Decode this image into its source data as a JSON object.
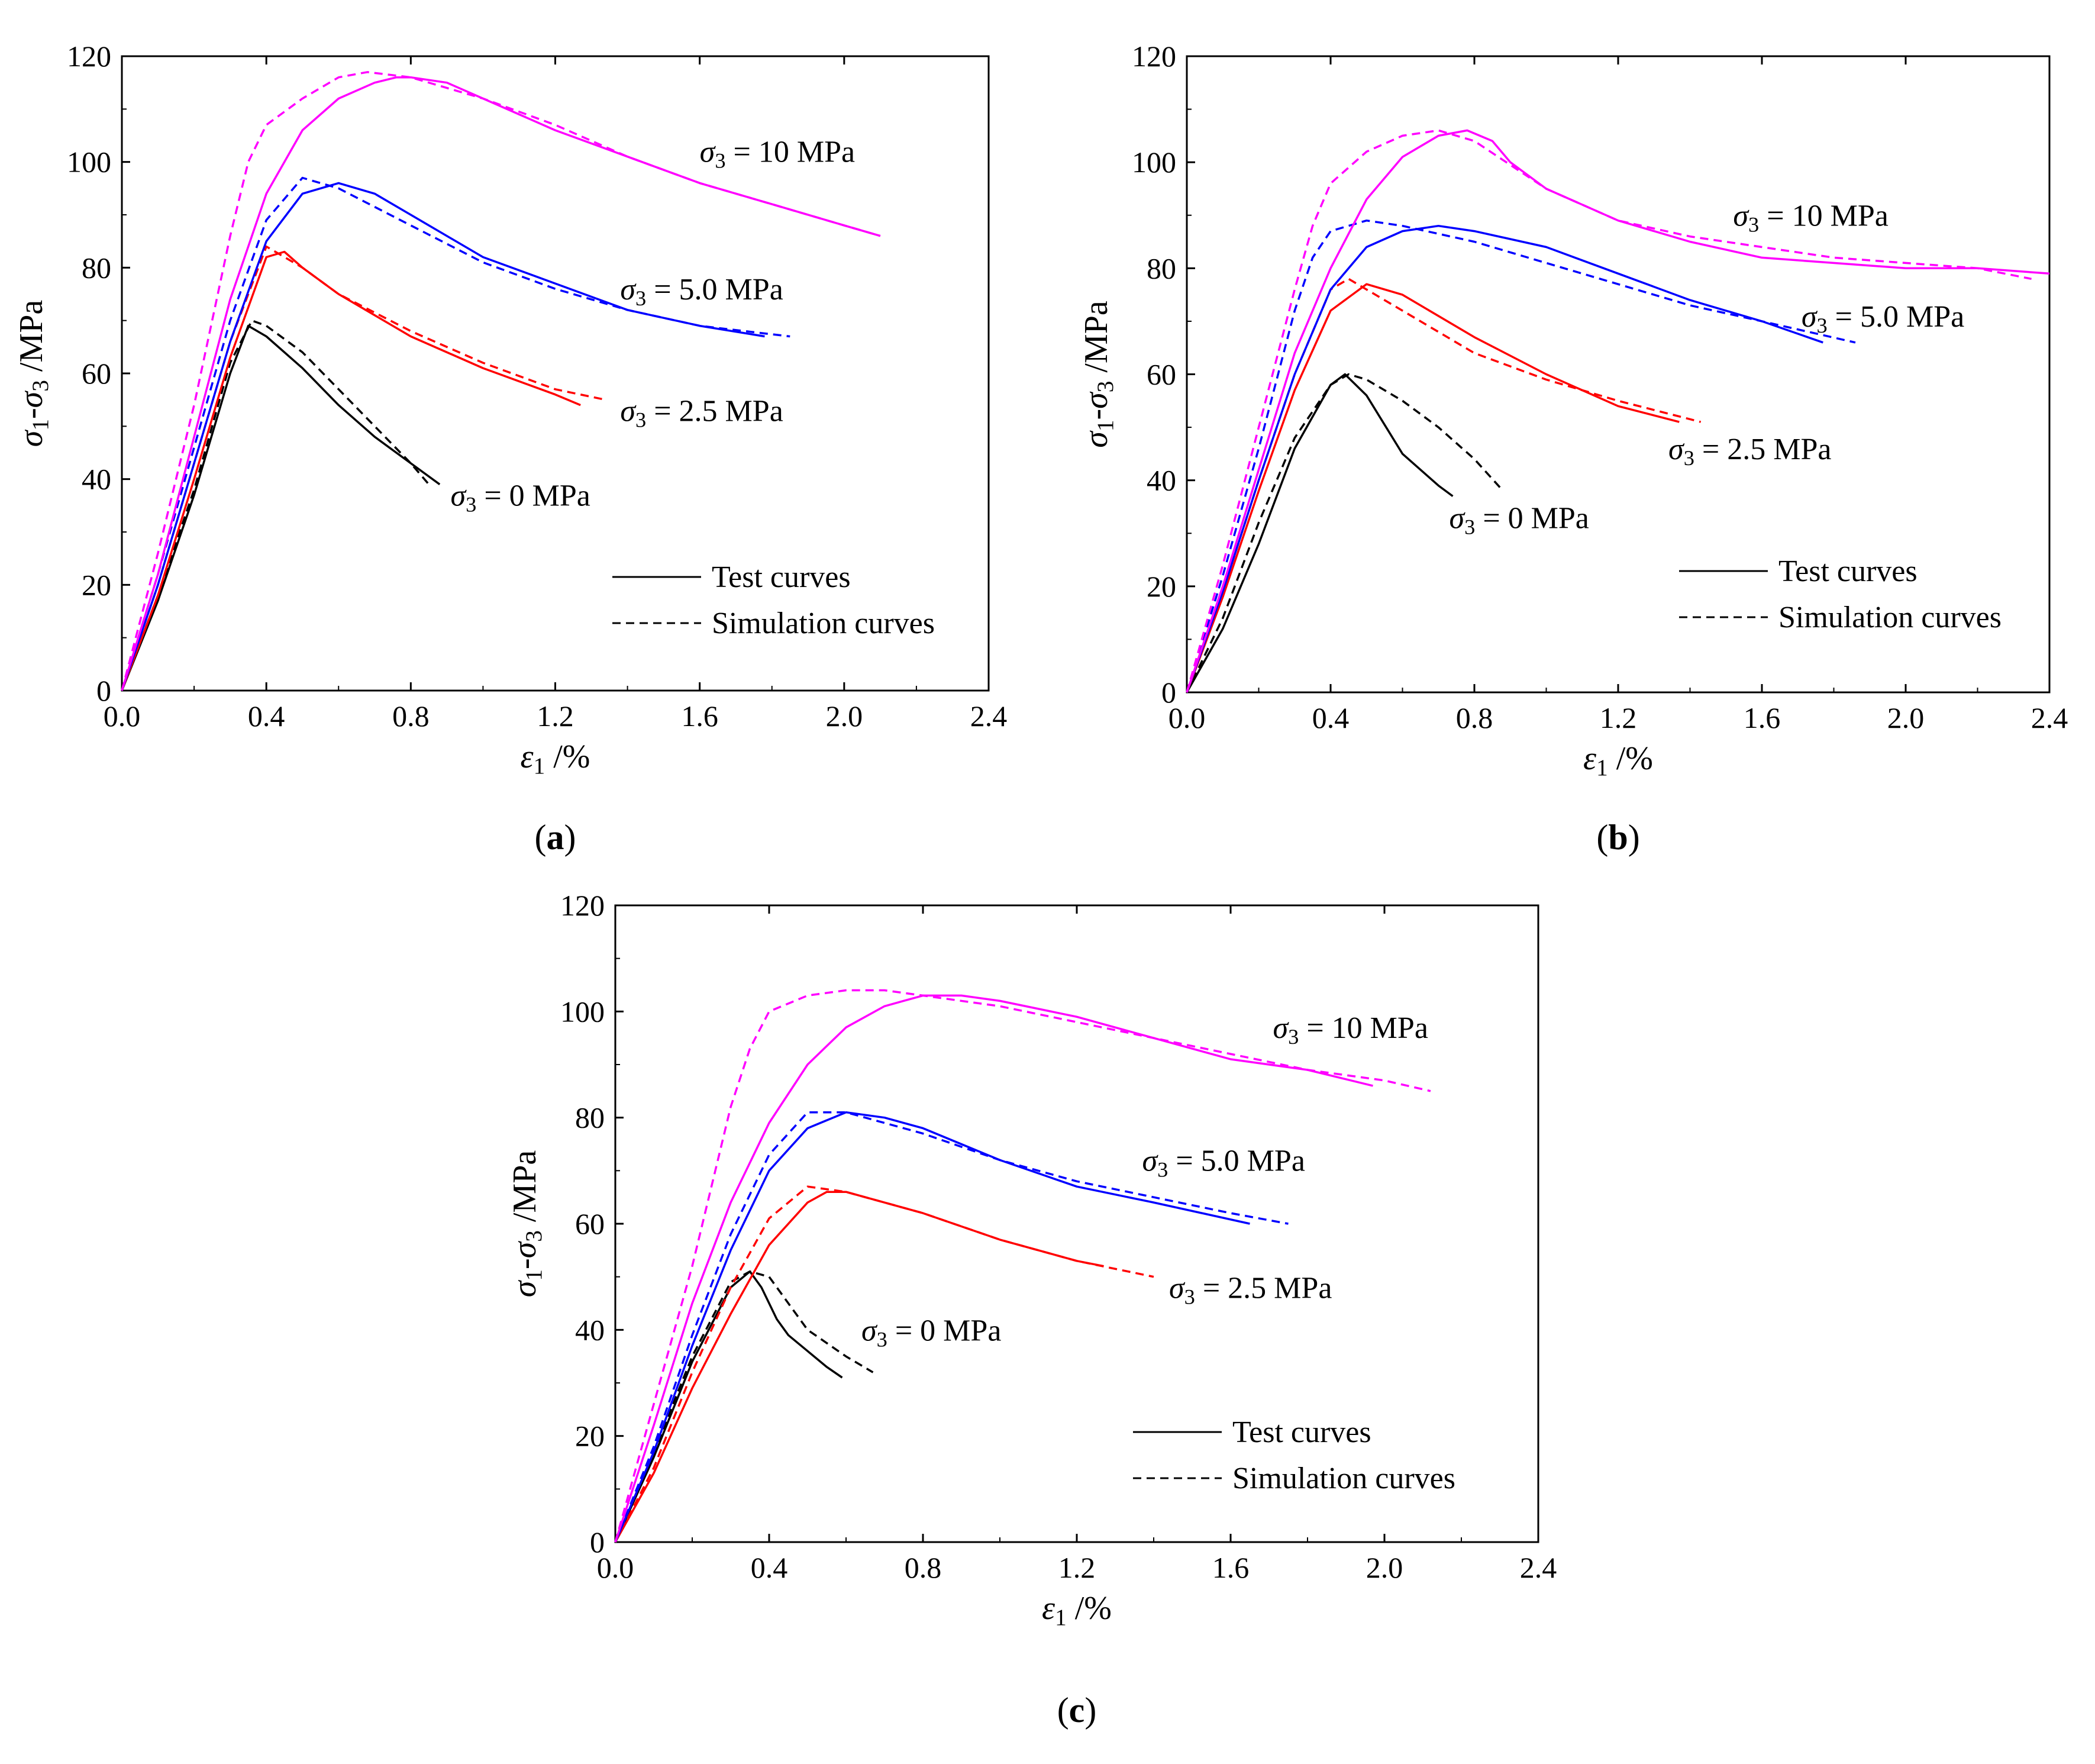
{
  "legend": {
    "test": "Test curves",
    "simulation": "Simulation curves"
  },
  "chart_data": [
    {
      "type": "line",
      "panel_label": "a",
      "xlabel": "ε1 /%",
      "ylabel": "σ1-σ3 /MPa",
      "xlim": [
        0,
        2.4
      ],
      "ylim": [
        0,
        120
      ],
      "xticks": [
        0.0,
        0.4,
        0.8,
        1.2,
        1.6,
        2.0,
        2.4
      ],
      "yticks": [
        0,
        20,
        40,
        60,
        80,
        100,
        120
      ],
      "legend_position": "bottom-right",
      "series": [
        {
          "name": "σ3 = 0 MPa",
          "color": "#000000",
          "style": "solid",
          "x": [
            0,
            0.1,
            0.2,
            0.3,
            0.35,
            0.4,
            0.5,
            0.6,
            0.7,
            0.8,
            0.88
          ],
          "y": [
            0,
            17,
            37,
            60,
            69,
            67,
            61,
            54,
            48,
            43,
            39
          ]
        },
        {
          "name": "σ3 = 0 MPa",
          "color": "#000000",
          "style": "dashed",
          "x": [
            0,
            0.1,
            0.2,
            0.3,
            0.36,
            0.4,
            0.5,
            0.6,
            0.7,
            0.8,
            0.85
          ],
          "y": [
            0,
            18,
            38,
            62,
            70,
            69,
            64,
            57,
            50,
            43,
            39
          ]
        },
        {
          "name": "σ3 = 2.5 MPa",
          "color": "#ff0000",
          "style": "solid",
          "x": [
            0,
            0.1,
            0.2,
            0.3,
            0.4,
            0.45,
            0.5,
            0.6,
            0.8,
            1.0,
            1.2,
            1.27
          ],
          "y": [
            0,
            18,
            40,
            63,
            82,
            83,
            80,
            75,
            67,
            61,
            56,
            54
          ]
        },
        {
          "name": "σ3 = 2.5 MPa",
          "color": "#ff0000",
          "style": "dashed",
          "x": [
            0,
            0.1,
            0.2,
            0.3,
            0.4,
            0.5,
            0.6,
            0.8,
            1.0,
            1.2,
            1.34
          ],
          "y": [
            0,
            20,
            43,
            66,
            84,
            80,
            75,
            68,
            62,
            57,
            55
          ]
        },
        {
          "name": "σ3 = 5.0 MPa",
          "color": "#0000ff",
          "style": "solid",
          "x": [
            0,
            0.1,
            0.2,
            0.3,
            0.4,
            0.5,
            0.6,
            0.7,
            0.8,
            1.0,
            1.2,
            1.4,
            1.6,
            1.78
          ],
          "y": [
            0,
            20,
            43,
            66,
            85,
            94,
            96,
            94,
            90,
            82,
            77,
            72,
            69,
            67
          ]
        },
        {
          "name": "σ3 = 5.0 MPa",
          "color": "#0000ff",
          "style": "dashed",
          "x": [
            0,
            0.1,
            0.2,
            0.3,
            0.4,
            0.5,
            0.6,
            0.8,
            1.0,
            1.2,
            1.4,
            1.6,
            1.85
          ],
          "y": [
            0,
            22,
            46,
            70,
            89,
            97,
            95,
            88,
            81,
            76,
            72,
            69,
            67
          ]
        },
        {
          "name": "σ3 = 10 MPa",
          "color": "#ff00ff",
          "style": "solid",
          "x": [
            0,
            0.1,
            0.2,
            0.3,
            0.4,
            0.5,
            0.6,
            0.7,
            0.76,
            0.8,
            0.9,
            1.0,
            1.2,
            1.4,
            1.6,
            1.8,
            2.0,
            2.1
          ],
          "y": [
            0,
            22,
            48,
            74,
            94,
            106,
            112,
            115,
            116,
            116,
            115,
            112,
            106,
            101,
            96,
            92,
            88,
            86
          ]
        },
        {
          "name": "σ3 = 10 MPa",
          "color": "#ff00ff",
          "style": "dashed",
          "x": [
            0,
            0.1,
            0.2,
            0.3,
            0.35,
            0.4,
            0.5,
            0.6,
            0.68,
            0.8,
            1.0,
            1.2,
            1.4,
            1.6,
            1.8,
            2.0,
            2.1
          ],
          "y": [
            0,
            26,
            54,
            86,
            100,
            107,
            112,
            116,
            117,
            116,
            112,
            107,
            101,
            96,
            92,
            88,
            86
          ]
        }
      ],
      "annotations": [
        {
          "base": "σ",
          "sub": "3",
          "text": " = 0 MPa",
          "x": 0.91,
          "y": 35
        },
        {
          "base": "σ",
          "sub": "3",
          "text": " = 2.5 MPa",
          "x": 1.38,
          "y": 51
        },
        {
          "base": "σ",
          "sub": "3",
          "text": " = 5.0 MPa",
          "x": 1.38,
          "y": 74
        },
        {
          "base": "σ",
          "sub": "3",
          "text": " = 10 MPa",
          "x": 1.6,
          "y": 100
        }
      ]
    },
    {
      "type": "line",
      "panel_label": "b",
      "xlabel": "ε1 /%",
      "ylabel": "σ1-σ3 /MPa",
      "xlim": [
        0,
        2.4
      ],
      "ylim": [
        0,
        120
      ],
      "xticks": [
        0.0,
        0.4,
        0.8,
        1.2,
        1.6,
        2.0,
        2.4
      ],
      "yticks": [
        0,
        20,
        40,
        60,
        80,
        100,
        120
      ],
      "legend_position": "bottom-right",
      "series": [
        {
          "name": "σ3 = 0 MPa",
          "color": "#000000",
          "style": "solid",
          "x": [
            0,
            0.1,
            0.2,
            0.3,
            0.4,
            0.44,
            0.5,
            0.6,
            0.7,
            0.74
          ],
          "y": [
            0,
            12,
            28,
            46,
            58,
            60,
            56,
            45,
            39,
            37
          ]
        },
        {
          "name": "σ3 = 0 MPa",
          "color": "#000000",
          "style": "dashed",
          "x": [
            0,
            0.1,
            0.2,
            0.3,
            0.4,
            0.45,
            0.5,
            0.6,
            0.7,
            0.8,
            0.88
          ],
          "y": [
            0,
            14,
            32,
            48,
            58,
            60,
            59,
            55,
            50,
            44,
            38
          ]
        },
        {
          "name": "σ3 = 2.5 MPa",
          "color": "#ff0000",
          "style": "solid",
          "x": [
            0,
            0.1,
            0.2,
            0.3,
            0.4,
            0.5,
            0.6,
            0.8,
            1.0,
            1.2,
            1.37
          ],
          "y": [
            0,
            18,
            38,
            57,
            72,
            77,
            75,
            67,
            60,
            54,
            51
          ]
        },
        {
          "name": "σ3 = 2.5 MPa",
          "color": "#ff0000",
          "style": "dashed",
          "x": [
            0,
            0.1,
            0.2,
            0.3,
            0.4,
            0.45,
            0.5,
            0.6,
            0.8,
            1.0,
            1.2,
            1.43
          ],
          "y": [
            0,
            19,
            40,
            60,
            76,
            78,
            76,
            72,
            64,
            59,
            55,
            51
          ]
        },
        {
          "name": "σ3 = 5.0 MPa",
          "color": "#0000ff",
          "style": "solid",
          "x": [
            0,
            0.1,
            0.2,
            0.3,
            0.4,
            0.5,
            0.6,
            0.7,
            0.8,
            1.0,
            1.2,
            1.4,
            1.6,
            1.77
          ],
          "y": [
            0,
            19,
            40,
            60,
            76,
            84,
            87,
            88,
            87,
            84,
            79,
            74,
            70,
            66
          ]
        },
        {
          "name": "σ3 = 5.0 MPa",
          "color": "#0000ff",
          "style": "dashed",
          "x": [
            0,
            0.1,
            0.2,
            0.3,
            0.35,
            0.4,
            0.5,
            0.6,
            0.8,
            1.0,
            1.2,
            1.4,
            1.6,
            1.86
          ],
          "y": [
            0,
            22,
            46,
            72,
            82,
            87,
            89,
            88,
            85,
            81,
            77,
            73,
            70,
            66
          ]
        },
        {
          "name": "σ3 = 10 MPa",
          "color": "#ff00ff",
          "style": "solid",
          "x": [
            0,
            0.1,
            0.2,
            0.3,
            0.4,
            0.5,
            0.6,
            0.7,
            0.78,
            0.85,
            0.9,
            1.0,
            1.2,
            1.4,
            1.6,
            1.8,
            2.0,
            2.2,
            2.4
          ],
          "y": [
            0,
            20,
            42,
            64,
            80,
            93,
            101,
            105,
            106,
            104,
            100,
            95,
            89,
            85,
            82,
            81,
            80,
            80,
            79
          ]
        },
        {
          "name": "σ3 = 10 MPa",
          "color": "#ff00ff",
          "style": "dashed",
          "x": [
            0,
            0.1,
            0.2,
            0.3,
            0.35,
            0.4,
            0.5,
            0.6,
            0.7,
            0.8,
            1.0,
            1.2,
            1.4,
            1.6,
            1.8,
            2.0,
            2.2,
            2.35
          ],
          "y": [
            0,
            24,
            50,
            76,
            88,
            96,
            102,
            105,
            106,
            104,
            95,
            89,
            86,
            84,
            82,
            81,
            80,
            78
          ]
        }
      ],
      "annotations": [
        {
          "base": "σ",
          "sub": "3",
          "text": " = 0 MPa",
          "x": 0.73,
          "y": 31
        },
        {
          "base": "σ",
          "sub": "3",
          "text": " = 2.5 MPa",
          "x": 1.34,
          "y": 44
        },
        {
          "base": "σ",
          "sub": "3",
          "text": " = 5.0 MPa",
          "x": 1.71,
          "y": 69
        },
        {
          "base": "σ",
          "sub": "3",
          "text": " = 10 MPa",
          "x": 1.52,
          "y": 88
        }
      ]
    },
    {
      "type": "line",
      "panel_label": "c",
      "xlabel": "ε1 /%",
      "ylabel": "σ1-σ3 /MPa",
      "xlim": [
        0,
        2.4
      ],
      "ylim": [
        0,
        120
      ],
      "xticks": [
        0.0,
        0.4,
        0.8,
        1.2,
        1.6,
        2.0,
        2.4
      ],
      "yticks": [
        0,
        20,
        40,
        60,
        80,
        100,
        120
      ],
      "legend_position": "bottom-right",
      "series": [
        {
          "name": "σ3 = 0 MPa",
          "color": "#000000",
          "style": "solid",
          "x": [
            0,
            0.1,
            0.2,
            0.3,
            0.35,
            0.38,
            0.42,
            0.45,
            0.5,
            0.55,
            0.59
          ],
          "y": [
            0,
            16,
            34,
            48,
            51,
            48,
            42,
            39,
            36,
            33,
            31
          ]
        },
        {
          "name": "σ3 = 0 MPa",
          "color": "#000000",
          "style": "dashed",
          "x": [
            0,
            0.1,
            0.2,
            0.3,
            0.35,
            0.4,
            0.45,
            0.5,
            0.6,
            0.67
          ],
          "y": [
            0,
            17,
            35,
            49,
            51,
            50,
            45,
            40,
            35,
            32
          ]
        },
        {
          "name": "σ3 = 2.5 MPa",
          "color": "#ff0000",
          "style": "solid",
          "x": [
            0,
            0.1,
            0.2,
            0.3,
            0.4,
            0.5,
            0.55,
            0.6,
            0.8,
            1.0,
            1.2,
            1.27
          ],
          "y": [
            0,
            13,
            29,
            43,
            56,
            64,
            66,
            66,
            62,
            57,
            53,
            52
          ]
        },
        {
          "name": "σ3 = 2.5 MPa",
          "color": "#ff0000",
          "style": "dashed",
          "x": [
            0,
            0.1,
            0.2,
            0.3,
            0.4,
            0.5,
            0.6,
            0.8,
            1.0,
            1.2,
            1.4
          ],
          "y": [
            0,
            14,
            32,
            48,
            61,
            67,
            66,
            62,
            57,
            53,
            50
          ]
        },
        {
          "name": "σ3 = 5.0 MPa",
          "color": "#0000ff",
          "style": "solid",
          "x": [
            0,
            0.1,
            0.2,
            0.3,
            0.4,
            0.5,
            0.6,
            0.7,
            0.8,
            1.0,
            1.2,
            1.4,
            1.65
          ],
          "y": [
            0,
            17,
            37,
            55,
            70,
            78,
            81,
            80,
            78,
            72,
            67,
            64,
            60
          ]
        },
        {
          "name": "σ3 = 5.0 MPa",
          "color": "#0000ff",
          "style": "dashed",
          "x": [
            0,
            0.1,
            0.2,
            0.3,
            0.4,
            0.5,
            0.6,
            0.8,
            1.0,
            1.2,
            1.4,
            1.6,
            1.75
          ],
          "y": [
            0,
            18,
            39,
            58,
            73,
            81,
            81,
            77,
            72,
            68,
            65,
            62,
            60
          ]
        },
        {
          "name": "σ3 = 10 MPa",
          "color": "#ff00ff",
          "style": "solid",
          "x": [
            0,
            0.1,
            0.2,
            0.3,
            0.4,
            0.5,
            0.6,
            0.7,
            0.8,
            0.9,
            1.0,
            1.2,
            1.4,
            1.6,
            1.8,
            1.97
          ],
          "y": [
            0,
            22,
            45,
            64,
            79,
            90,
            97,
            101,
            103,
            103,
            102,
            99,
            95,
            91,
            89,
            86
          ]
        },
        {
          "name": "σ3 = 10 MPa",
          "color": "#ff00ff",
          "style": "dashed",
          "x": [
            0,
            0.1,
            0.2,
            0.3,
            0.35,
            0.4,
            0.5,
            0.6,
            0.7,
            0.8,
            1.0,
            1.2,
            1.4,
            1.6,
            1.8,
            2.0,
            2.12
          ],
          "y": [
            0,
            26,
            52,
            82,
            93,
            100,
            103,
            104,
            104,
            103,
            101,
            98,
            95,
            92,
            89,
            87,
            85
          ]
        }
      ],
      "annotations": [
        {
          "base": "σ",
          "sub": "3",
          "text": " = 0 MPa",
          "x": 0.64,
          "y": 38
        },
        {
          "base": "σ",
          "sub": "3",
          "text": " = 2.5 MPa",
          "x": 1.44,
          "y": 46
        },
        {
          "base": "σ",
          "sub": "3",
          "text": " = 5.0 MPa",
          "x": 1.37,
          "y": 70
        },
        {
          "base": "σ",
          "sub": "3",
          "text": " = 10 MPa",
          "x": 1.71,
          "y": 95
        }
      ]
    }
  ]
}
